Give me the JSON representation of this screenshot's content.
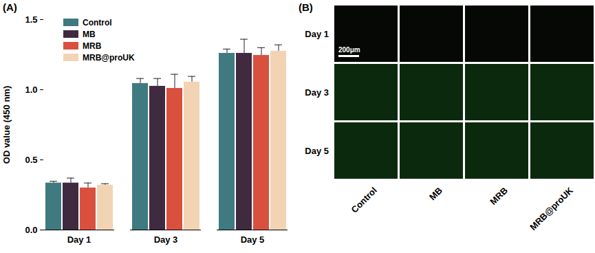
{
  "chart_data": {
    "type": "bar",
    "panel": "(A)",
    "categories": [
      "Day 1",
      "Day 3",
      "Day 5"
    ],
    "y_label": "OD value (450 nm)",
    "ylim": [
      0,
      1.5
    ],
    "yticks": [
      {
        "value": 0,
        "label": "0.0"
      },
      {
        "value": 0.5,
        "label": "0.5"
      },
      {
        "value": 1,
        "label": "1.0"
      },
      {
        "value": 1.5,
        "label": "1.5"
      }
    ],
    "legend": "top-left",
    "series": [
      {
        "name": "Control",
        "color": "#3f7a80",
        "values": [
          0.335,
          1.045,
          1.26
        ],
        "errors": [
          0.012,
          0.035,
          0.03
        ]
      },
      {
        "name": "MB",
        "color": "#3f2a40",
        "values": [
          0.335,
          1.025,
          1.26
        ],
        "errors": [
          0.035,
          0.055,
          0.1
        ]
      },
      {
        "name": "MRB",
        "color": "#d9503f",
        "values": [
          0.3,
          1.01,
          1.245
        ],
        "errors": [
          0.035,
          0.1,
          0.055
        ]
      },
      {
        "name": "MRB@proUK",
        "color": "#f2d4b4",
        "values": [
          0.32,
          1.055,
          1.275
        ],
        "errors": [
          0.01,
          0.04,
          0.045
        ]
      }
    ]
  },
  "image_panel": {
    "panel": "(B)",
    "rows": [
      "Day 1",
      "Day 3",
      "Day 5"
    ],
    "columns": [
      "Control",
      "MB",
      "MRB",
      "MRB@proUK"
    ],
    "scale_bar": "200μm"
  }
}
